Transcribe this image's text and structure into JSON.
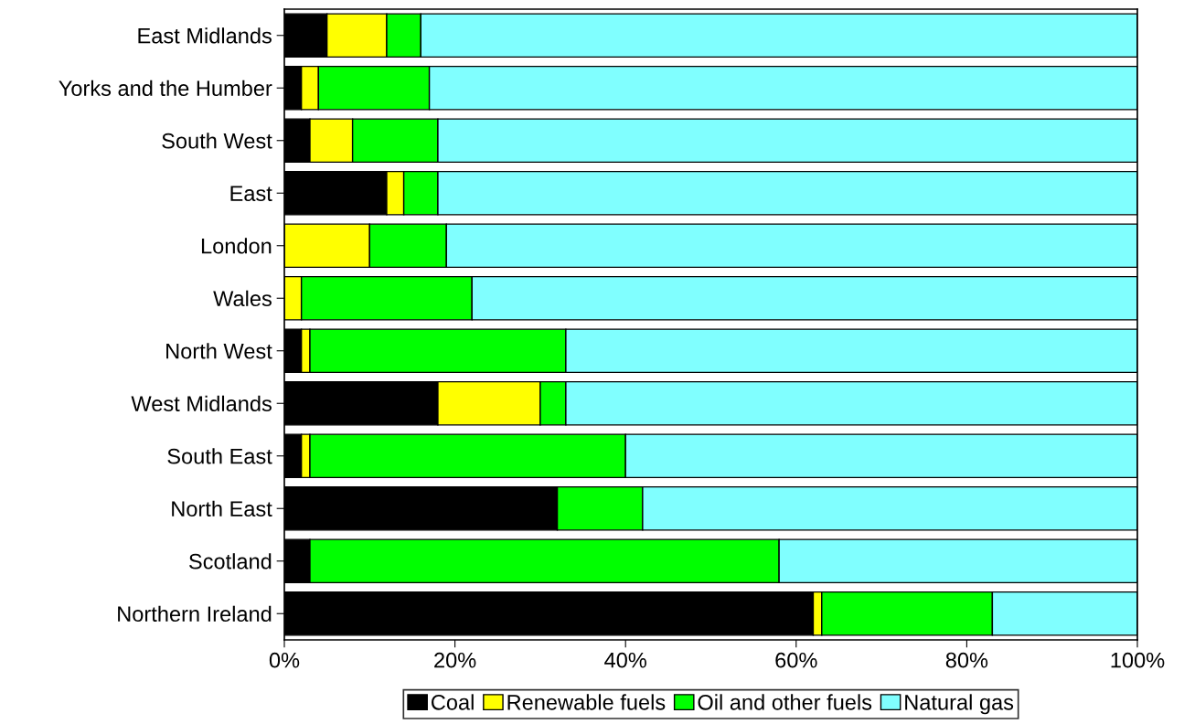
{
  "chart_data": {
    "type": "bar",
    "orientation": "horizontal",
    "stacked": true,
    "categories": [
      "East Midlands",
      "Yorks and the Humber",
      "South West",
      "East",
      "London",
      "Wales",
      "North West",
      "West Midlands",
      "South East",
      "North East",
      "Scotland",
      "Northern Ireland"
    ],
    "series": [
      {
        "name": "Coal",
        "color": "#000000",
        "values": [
          5,
          2,
          3,
          12,
          0,
          0,
          2,
          18,
          2,
          32,
          3,
          62
        ]
      },
      {
        "name": "Renewable fuels",
        "color": "#ffff00",
        "values": [
          7,
          2,
          5,
          2,
          10,
          2,
          1,
          12,
          1,
          0,
          0,
          1
        ]
      },
      {
        "name": "Oil and other fuels",
        "color": "#00ff00",
        "values": [
          4,
          13,
          10,
          4,
          9,
          20,
          30,
          3,
          37,
          10,
          55,
          20
        ]
      },
      {
        "name": "Natural gas",
        "color": "#80ffff",
        "values": [
          84,
          83,
          82,
          82,
          81,
          78,
          67,
          67,
          60,
          58,
          42,
          17
        ]
      }
    ],
    "xlim": [
      0,
      100
    ],
    "xticks": [
      {
        "value": 0,
        "label": "0%"
      },
      {
        "value": 20,
        "label": "20%"
      },
      {
        "value": 40,
        "label": "40%"
      },
      {
        "value": 60,
        "label": "60%"
      },
      {
        "value": 80,
        "label": "80%"
      },
      {
        "value": 100,
        "label": "100%"
      }
    ],
    "grid": false,
    "legend": "bottom"
  }
}
